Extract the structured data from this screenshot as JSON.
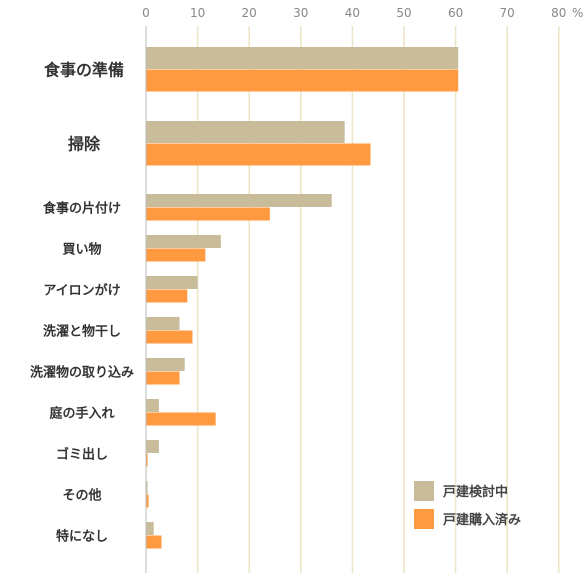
{
  "chart_data": {
    "type": "bar",
    "orientation": "horizontal",
    "unit": "%",
    "xlim": [
      0,
      80
    ],
    "ticks": [
      0,
      10,
      20,
      30,
      40,
      50,
      60,
      70,
      80
    ],
    "grid": true,
    "legend_position": "bottom-right",
    "categories": [
      "食事の準備",
      "掃除",
      "食事の片付け",
      "買い物",
      "アイロンがけ",
      "洗濯と物干し",
      "洗濯物の取り込み",
      "庭の手入れ",
      "ゴミ出し",
      "その他",
      "特になし"
    ],
    "series": [
      {
        "name": "戸建検討中",
        "color": "#c8bc9b",
        "values": [
          60.5,
          38.5,
          36,
          14.5,
          10,
          6.5,
          7.5,
          2.5,
          2.5,
          0.3,
          1.5
        ]
      },
      {
        "name": "戸建購入済み",
        "color": "#ff9a40",
        "values": [
          60.5,
          43.5,
          24,
          11.5,
          8,
          9,
          6.5,
          13.5,
          0.3,
          0.5,
          3
        ]
      }
    ]
  }
}
